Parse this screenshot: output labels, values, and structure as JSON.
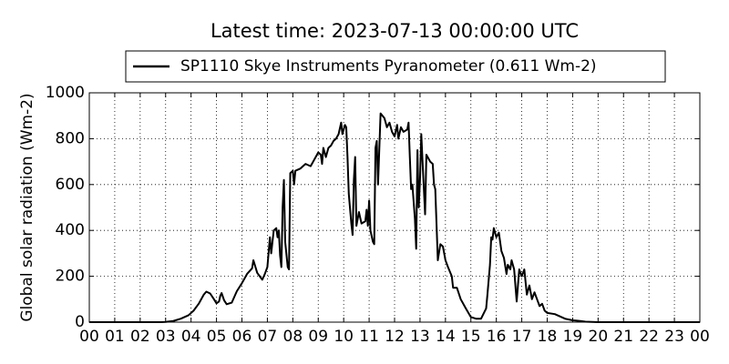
{
  "chart_data": {
    "type": "line",
    "title": "Latest time: 2023-07-13 00:00:00 UTC",
    "ylabel": "Global solar radiation (Wm-2)",
    "xlim": [
      0,
      24
    ],
    "ylim": [
      0,
      1000
    ],
    "yticks": [
      0,
      200,
      400,
      600,
      800,
      1000
    ],
    "xticks": [
      {
        "value": 0,
        "label": "00"
      },
      {
        "value": 1,
        "label": "01"
      },
      {
        "value": 2,
        "label": "02"
      },
      {
        "value": 3,
        "label": "03"
      },
      {
        "value": 4,
        "label": "04"
      },
      {
        "value": 5,
        "label": "05"
      },
      {
        "value": 6,
        "label": "06"
      },
      {
        "value": 7,
        "label": "07"
      },
      {
        "value": 8,
        "label": "08"
      },
      {
        "value": 9,
        "label": "09"
      },
      {
        "value": 10,
        "label": "10"
      },
      {
        "value": 11,
        "label": "11"
      },
      {
        "value": 12,
        "label": "12"
      },
      {
        "value": 13,
        "label": "13"
      },
      {
        "value": 14,
        "label": "14"
      },
      {
        "value": 15,
        "label": "15"
      },
      {
        "value": 16,
        "label": "16"
      },
      {
        "value": 17,
        "label": "17"
      },
      {
        "value": 18,
        "label": "18"
      },
      {
        "value": 19,
        "label": "19"
      },
      {
        "value": 20,
        "label": "20"
      },
      {
        "value": 21,
        "label": "21"
      },
      {
        "value": 22,
        "label": "22"
      },
      {
        "value": 23,
        "label": "23"
      },
      {
        "value": 24,
        "label": "00"
      }
    ],
    "grid": true,
    "legend": "top",
    "x": [
      0,
      1,
      2,
      2.8,
      3.0,
      3.3,
      3.6,
      3.9,
      4.1,
      4.3,
      4.5,
      4.6,
      4.75,
      4.9,
      5.0,
      5.1,
      5.15,
      5.2,
      5.3,
      5.4,
      5.6,
      5.7,
      5.8,
      6.0,
      6.2,
      6.4,
      6.45,
      6.6,
      6.7,
      6.8,
      6.9,
      7.0,
      7.1,
      7.15,
      7.25,
      7.35,
      7.4,
      7.45,
      7.5,
      7.55,
      7.6,
      7.65,
      7.7,
      7.8,
      7.85,
      7.9,
      8.0,
      8.05,
      8.1,
      8.3,
      8.5,
      8.7,
      8.8,
      9.0,
      9.1,
      9.15,
      9.2,
      9.3,
      9.4,
      9.5,
      9.6,
      9.7,
      9.8,
      9.9,
      9.95,
      10.05,
      10.1,
      10.15,
      10.2,
      10.3,
      10.35,
      10.4,
      10.45,
      10.5,
      10.6,
      10.7,
      10.85,
      10.9,
      10.95,
      11.0,
      11.05,
      11.15,
      11.2,
      11.25,
      11.3,
      11.35,
      11.45,
      11.6,
      11.7,
      11.8,
      11.9,
      12.0,
      12.1,
      12.15,
      12.25,
      12.35,
      12.5,
      12.55,
      12.6,
      12.65,
      12.7,
      12.8,
      12.85,
      12.9,
      12.95,
      13.0,
      13.05,
      13.1,
      13.2,
      13.25,
      13.4,
      13.5,
      13.55,
      13.6,
      13.7,
      13.8,
      13.9,
      14.0,
      14.1,
      14.25,
      14.3,
      14.45,
      14.6,
      14.8,
      15.0,
      15.2,
      15.4,
      15.6,
      15.65,
      15.75,
      15.8,
      15.85,
      15.9,
      16.0,
      16.1,
      16.2,
      16.3,
      16.4,
      16.45,
      16.55,
      16.6,
      16.7,
      16.8,
      16.9,
      17.0,
      17.1,
      17.2,
      17.3,
      17.4,
      17.5,
      17.6,
      17.7,
      17.8,
      17.9,
      18.0,
      18.3,
      18.5,
      18.7,
      19.0,
      19.3,
      19.5,
      20,
      24
    ],
    "series": [
      {
        "name": "SP1110 Skye Instruments Pyranometer (0.611 Wm-2)",
        "color": "#000000",
        "values": [
          0,
          0,
          0,
          0,
          1,
          5,
          15,
          30,
          50,
          80,
          120,
          133,
          125,
          100,
          82,
          90,
          115,
          127,
          95,
          78,
          85,
          110,
          135,
          170,
          210,
          235,
          270,
          215,
          200,
          185,
          210,
          240,
          370,
          300,
          400,
          410,
          370,
          400,
          290,
          240,
          500,
          620,
          350,
          240,
          230,
          650,
          660,
          600,
          660,
          670,
          690,
          680,
          700,
          740,
          730,
          690,
          760,
          720,
          760,
          770,
          790,
          800,
          820,
          870,
          820,
          860,
          850,
          720,
          560,
          430,
          380,
          620,
          720,
          420,
          480,
          430,
          440,
          490,
          420,
          530,
          400,
          350,
          340,
          760,
          790,
          600,
          910,
          890,
          850,
          870,
          830,
          810,
          860,
          800,
          850,
          830,
          840,
          870,
          720,
          580,
          600,
          450,
          320,
          750,
          500,
          620,
          820,
          700,
          470,
          730,
          700,
          690,
          600,
          580,
          270,
          340,
          330,
          270,
          240,
          200,
          150,
          150,
          100,
          60,
          22,
          15,
          15,
          60,
          120,
          250,
          370,
          360,
          410,
          370,
          390,
          310,
          280,
          210,
          250,
          230,
          270,
          230,
          90,
          230,
          200,
          230,
          120,
          160,
          100,
          130,
          100,
          70,
          80,
          50,
          40,
          35,
          25,
          15,
          8,
          5,
          2,
          0,
          0
        ]
      }
    ]
  }
}
